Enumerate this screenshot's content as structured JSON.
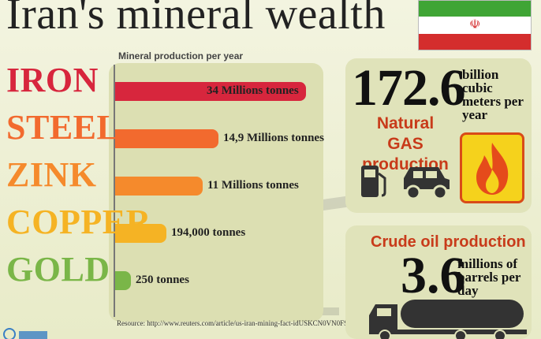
{
  "title": "Iran's mineral wealth",
  "chart_data": {
    "type": "bar",
    "orientation": "horizontal",
    "title": "Mineral production per year",
    "categories": [
      "IRON",
      "STEEL",
      "ZINK",
      "COPPER",
      "GOLD"
    ],
    "values": [
      34000000,
      14900000,
      11000000,
      194000,
      250
    ],
    "units": "tonnes",
    "value_labels": [
      "34 Millions tonnes",
      "14,9 Millions tonnes",
      "11 Millions tonnes",
      "194,000 tonnes",
      "250 tonnes"
    ],
    "category_colors": [
      "#d7263d",
      "#f26a2e",
      "#f58a2c",
      "#f5b324",
      "#7ab648"
    ],
    "bar_fill_fractions": [
      1.0,
      0.54,
      0.46,
      0.27,
      0.08
    ],
    "scale_note": "bar lengths not proportional to values"
  },
  "source": "Resource: http://www.reuters.com/article/us-iran-mining-fact-idUSKCN0VN0FS",
  "gas": {
    "value": "172.6",
    "unit": "billion cubic meters per year",
    "label": "Natural GAS production",
    "icons": [
      "fuel-pump-icon",
      "car-icon",
      "flame-icon"
    ]
  },
  "oil": {
    "label": "Crude oil production",
    "value": "3.6",
    "unit": "millions of barrels per day",
    "icons": [
      "tanker-truck-icon"
    ]
  },
  "colors": {
    "accent_red": "#c83b1a",
    "flag_green": "#3fa535",
    "flag_red": "#d42d2d"
  }
}
